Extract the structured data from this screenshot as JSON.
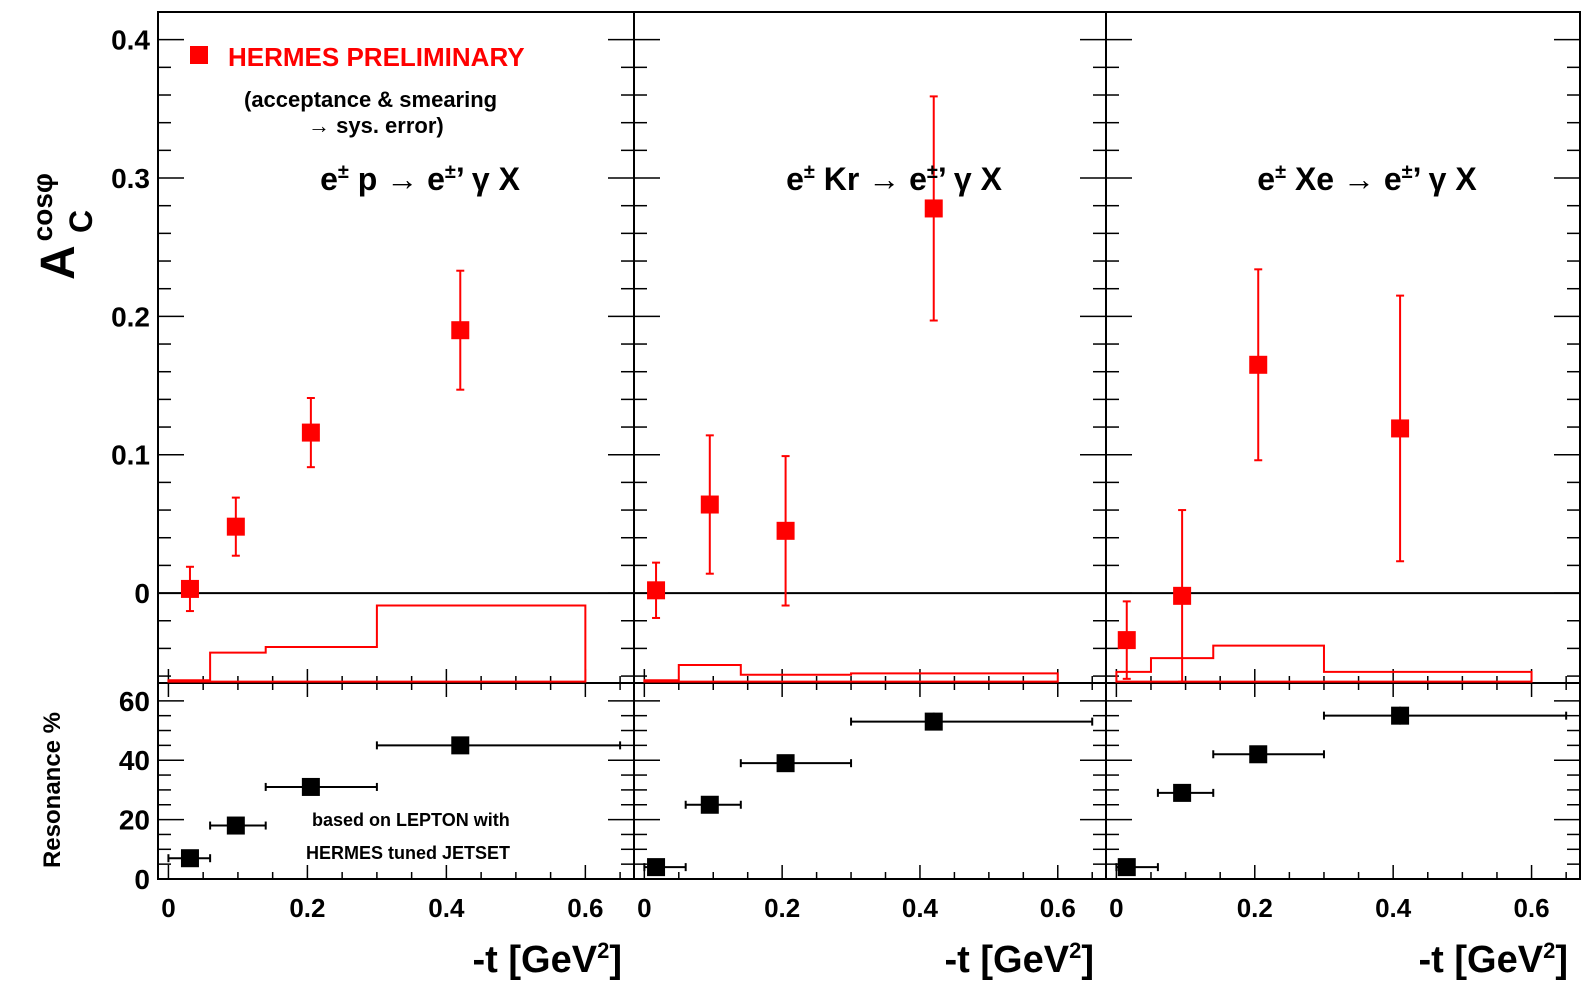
{
  "chart_data": [
    {
      "type": "scatter",
      "reaction": {
        "pre": "e",
        "sup": "±",
        "mid": " p → e",
        "sup2": "±",
        "post": "’ γ X"
      },
      "legend": {
        "label": "HERMES PRELIMINARY",
        "note_line1": "(acceptance & smearing",
        "note_line2": "→ sys. error)"
      },
      "ylabel": {
        "main": "A",
        "sup": "cosφ",
        "sub": "C"
      },
      "ylim": [
        -0.065,
        0.42
      ],
      "xlim": [
        -0.015,
        0.67
      ],
      "x": [
        0.031,
        0.097,
        0.205,
        0.42
      ],
      "y": [
        0.003,
        0.048,
        0.116,
        0.19
      ],
      "err": [
        [
          0.016,
          0.016
        ],
        [
          0.021,
          0.021
        ],
        [
          0.025,
          0.025
        ],
        [
          0.043,
          0.043
        ]
      ],
      "sys_band": {
        "edges": [
          0.0,
          0.06,
          0.14,
          0.3,
          0.6
        ],
        "top": [
          -0.063,
          -0.043,
          -0.039,
          -0.009
        ],
        "bottom": -0.064
      },
      "resonance": {
        "ylabel": "Resonance %",
        "ylim": [
          0,
          66
        ],
        "x": [
          0.031,
          0.097,
          0.205,
          0.42
        ],
        "y": [
          7,
          18,
          31,
          45
        ],
        "xerr": [
          [
            0.0,
            0.06
          ],
          [
            0.06,
            0.14
          ],
          [
            0.14,
            0.3
          ],
          [
            0.3,
            0.65
          ]
        ],
        "yerr": [
          1,
          1,
          1,
          1
        ],
        "note_line1": "based on LEPTON with",
        "note_line2": "HERMES tuned JETSET"
      },
      "xlabel": {
        "main": "-t [GeV",
        "sup": "2",
        "end": "]"
      }
    },
    {
      "type": "scatter",
      "reaction": {
        "pre": "e",
        "sup": "±",
        "mid": " Kr → e",
        "sup2": "±",
        "post": "’ γ X"
      },
      "ylim": [
        -0.065,
        0.42
      ],
      "xlim": [
        -0.015,
        0.67
      ],
      "x": [
        0.017,
        0.095,
        0.205,
        0.42
      ],
      "y": [
        0.002,
        0.064,
        0.045,
        0.278
      ],
      "err": [
        [
          0.02,
          0.02
        ],
        [
          0.05,
          0.05
        ],
        [
          0.054,
          0.054
        ],
        [
          0.081,
          0.081
        ]
      ],
      "sys_band": {
        "edges": [
          0.0,
          0.05,
          0.14,
          0.3,
          0.6
        ],
        "top": [
          -0.063,
          -0.052,
          -0.059,
          -0.058
        ],
        "bottom": -0.064
      },
      "resonance": {
        "ylim": [
          0,
          66
        ],
        "x": [
          0.017,
          0.095,
          0.205,
          0.42
        ],
        "y": [
          4,
          25,
          39,
          53
        ],
        "xerr": [
          [
            0.0,
            0.06
          ],
          [
            0.06,
            0.14
          ],
          [
            0.14,
            0.3
          ],
          [
            0.3,
            0.65
          ]
        ],
        "yerr": [
          1,
          1,
          1,
          3
        ]
      },
      "xlabel": {
        "main": "-t [GeV",
        "sup": "2",
        "end": "]"
      }
    },
    {
      "type": "scatter",
      "reaction": {
        "pre": "e",
        "sup": "±",
        "mid": " Xe → e",
        "sup2": "±",
        "post": "’ γ X"
      },
      "ylim": [
        -0.065,
        0.42
      ],
      "xlim": [
        -0.015,
        0.67
      ],
      "x": [
        0.015,
        0.095,
        0.205,
        0.41
      ],
      "y": [
        -0.034,
        -0.002,
        0.165,
        0.119
      ],
      "err": [
        [
          0.028,
          0.028
        ],
        [
          0.062,
          0.062
        ],
        [
          0.069,
          0.069
        ],
        [
          0.096,
          0.096
        ]
      ],
      "sys_band": {
        "edges": [
          0.0,
          0.05,
          0.14,
          0.3,
          0.6
        ],
        "top": [
          -0.057,
          -0.047,
          -0.038,
          -0.057
        ],
        "bottom": -0.064
      },
      "resonance": {
        "ylim": [
          0,
          66
        ],
        "x": [
          0.015,
          0.095,
          0.205,
          0.41
        ],
        "y": [
          4,
          29,
          42,
          55
        ],
        "xerr": [
          [
            0.0,
            0.06
          ],
          [
            0.06,
            0.14
          ],
          [
            0.14,
            0.3
          ],
          [
            0.3,
            0.65
          ]
        ],
        "yerr": [
          1,
          1,
          1,
          3
        ]
      },
      "xlabel": {
        "main": "-t [GeV",
        "sup": "2",
        "end": "]"
      }
    }
  ],
  "axes": {
    "top_ticks": [
      0,
      0.1,
      0.2,
      0.3,
      0.4
    ],
    "top_tick_labels": [
      "0",
      "0.1",
      "0.2",
      "0.3",
      "0.4"
    ],
    "bottom_ticks": [
      0,
      20,
      40,
      60
    ],
    "bottom_tick_labels": [
      "0",
      "20",
      "40",
      "60"
    ],
    "x_ticks": [
      0,
      0.2,
      0.4,
      0.6
    ],
    "x_tick_labels": [
      "0",
      "0.2",
      "0.4",
      "0.6"
    ]
  },
  "colors": {
    "data": "#ff0000",
    "resonance": "#000000",
    "axis": "#000000"
  }
}
